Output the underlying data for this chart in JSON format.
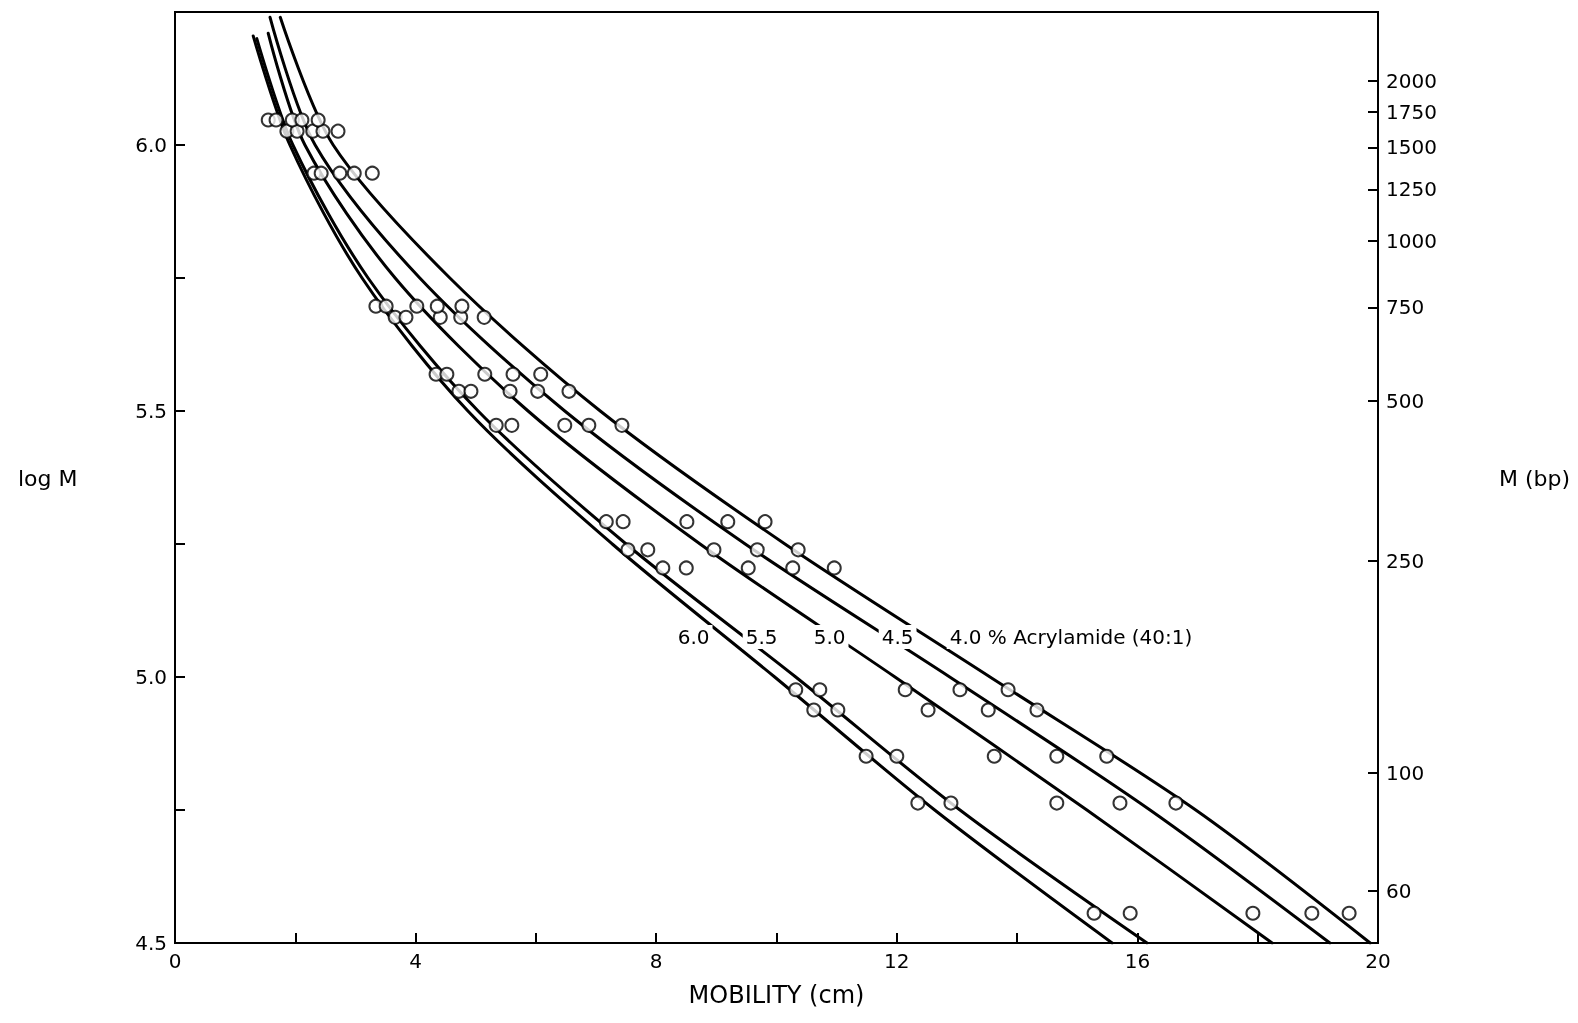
{
  "chart_data": {
    "type": "scatter",
    "xlabel": "MOBILITY (cm)",
    "ylabel": "log M",
    "y2label": "M (bp)",
    "xlim": [
      0,
      20
    ],
    "xticks": [
      0,
      {
        "value": 2,
        "label": null
      },
      4,
      {
        "value": 6,
        "label": null
      },
      8,
      {
        "value": 10,
        "label": null
      },
      12,
      {
        "value": 14,
        "label": null
      },
      16,
      {
        "value": 18,
        "label": null
      },
      20
    ],
    "ylim": [
      4.5,
      6.25
    ],
    "yticks": [
      4.5,
      {
        "value": 4.75,
        "label": null
      },
      {
        "value": 5.0,
        "label": "5.0"
      },
      {
        "value": 5.25,
        "label": null
      },
      5.5,
      {
        "value": 5.75,
        "label": null
      },
      {
        "value": 6.0,
        "label": "6.0"
      }
    ],
    "y2lim": [
      47.9,
      2694
    ],
    "y2ticks": [
      60,
      100,
      250,
      500,
      750,
      1000,
      1250,
      1500,
      1750,
      2000
    ],
    "log": "y2",
    "grid": false,
    "series": [
      {
        "marker": "circle",
        "color": "#000000",
        "x": [
          1.55,
          1.86,
          2.31,
          3.34,
          3.66,
          4.34,
          4.72,
          5.34,
          7.17,
          7.53,
          8.11,
          10.32,
          10.62,
          11.49,
          12.35,
          15.28
        ],
        "values": [
          6.047,
          6.026,
          5.947,
          5.697,
          5.676,
          5.569,
          5.537,
          5.473,
          5.292,
          5.239,
          5.205,
          4.976,
          4.938,
          4.851,
          4.763,
          4.556
        ]
      },
      {
        "marker": "circle",
        "color": "#000000",
        "x": [
          1.68,
          2.03,
          2.43,
          3.51,
          3.84,
          4.52,
          4.92,
          5.6,
          7.45,
          7.86,
          8.5,
          10.72,
          11.02,
          12.0,
          12.9,
          15.88
        ],
        "values": [
          6.047,
          6.026,
          5.947,
          5.697,
          5.676,
          5.569,
          5.537,
          5.473,
          5.292,
          5.239,
          5.205,
          4.976,
          4.938,
          4.851,
          4.763,
          4.556
        ]
      },
      {
        "marker": "circle",
        "color": "#000000",
        "x": [
          1.95,
          2.29,
          2.74,
          4.02,
          4.41,
          5.15,
          5.57,
          6.48,
          8.51,
          8.96,
          9.53,
          12.14,
          12.52,
          13.62,
          14.66,
          17.92
        ],
        "values": [
          6.047,
          6.026,
          5.947,
          5.697,
          5.676,
          5.569,
          5.537,
          5.473,
          5.292,
          5.239,
          5.205,
          4.976,
          4.938,
          4.851,
          4.763,
          4.556
        ]
      },
      {
        "marker": "circle",
        "color": "#000000",
        "x": [
          2.11,
          2.46,
          2.98,
          4.36,
          4.75,
          5.62,
          6.03,
          6.88,
          9.19,
          9.68,
          10.27,
          13.05,
          13.52,
          14.66,
          15.71,
          18.9
        ],
        "values": [
          6.047,
          6.026,
          5.947,
          5.697,
          5.676,
          5.569,
          5.537,
          5.473,
          5.292,
          5.239,
          5.205,
          4.976,
          4.938,
          4.851,
          4.763,
          4.556
        ]
      },
      {
        "marker": "circle",
        "color": "#000000",
        "x": [
          2.38,
          2.71,
          3.28,
          4.77,
          5.14,
          6.08,
          6.55,
          7.43,
          9.81,
          10.36,
          10.96,
          13.85,
          14.33,
          15.49,
          16.64,
          19.52
        ],
        "values": [
          6.047,
          6.026,
          5.947,
          5.697,
          5.676,
          5.569,
          5.537,
          5.473,
          5.292,
          5.239,
          5.205,
          4.976,
          4.938,
          4.851,
          4.763,
          4.556
        ]
      },
      {
        "type": "line",
        "marker": "none",
        "name": "6.0",
        "color": "#000000",
        "x": [
          1.3,
          1.91,
          3.11,
          4.87,
          7.27,
          9.97,
          12.63,
          15.58
        ],
        "values": [
          6.205,
          6.0,
          5.75,
          5.5,
          5.25,
          5.0,
          4.75,
          4.5
        ]
      },
      {
        "type": "line",
        "marker": "none",
        "name": "5.5",
        "color": "#000000",
        "x": [
          1.36,
          1.96,
          3.21,
          5.04,
          7.5,
          10.32,
          13.05,
          16.16
        ],
        "values": [
          6.2,
          6.0,
          5.75,
          5.5,
          5.25,
          5.0,
          4.75,
          4.5
        ]
      },
      {
        "type": "line",
        "marker": "none",
        "name": "5.0",
        "color": "#000000",
        "x": [
          1.55,
          2.16,
          3.66,
          5.87,
          8.73,
          11.97,
          15.16,
          18.24
        ],
        "values": [
          6.21,
          6.0,
          5.75,
          5.5,
          5.25,
          5.0,
          4.75,
          4.5
        ]
      },
      {
        "type": "line",
        "marker": "none",
        "name": "4.5",
        "color": "#000000",
        "x": [
          1.58,
          2.33,
          4.07,
          6.48,
          9.48,
          12.88,
          16.21,
          19.2
        ],
        "values": [
          6.24,
          6.0,
          5.75,
          5.5,
          5.25,
          5.0,
          4.75,
          4.5
        ]
      },
      {
        "type": "line",
        "marker": "none",
        "name": "4.0 % Acrylamide (40:1)",
        "color": "#000000",
        "x": [
          1.75,
          2.63,
          4.57,
          7.07,
          10.14,
          13.55,
          16.97,
          19.87
        ],
        "values": [
          6.24,
          6.0,
          5.75,
          5.5,
          5.25,
          5.0,
          4.75,
          4.5
        ]
      }
    ]
  }
}
